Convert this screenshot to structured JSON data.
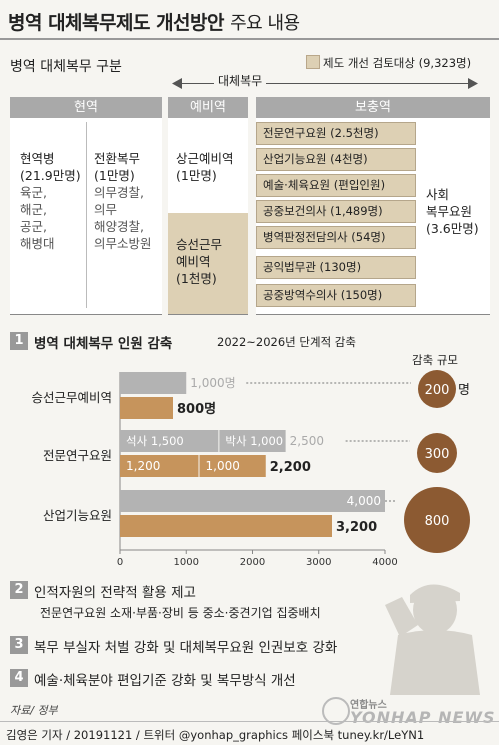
{
  "title": {
    "main": "병역 대체복무제도 개선방안",
    "sub": "주요 내용"
  },
  "section_label": "병역 대체복무 구분",
  "legend": {
    "label": "제도 개선 검토대상 (9,323명)",
    "color": "#ddd0b4"
  },
  "arrow_label": "대체복무",
  "headers": {
    "active": "현역",
    "reserve": "예비역",
    "supplementary": "보충역"
  },
  "active": {
    "col1": [
      "현역병",
      "(21.9만명)",
      "육군,",
      "해군,",
      "공군,",
      "해병대"
    ],
    "col2": [
      "전환복무",
      "(1만명)",
      "의무경찰,",
      "의무",
      "해양경찰,",
      "의무소방원"
    ]
  },
  "reserve": {
    "top": [
      "상근예비역",
      "(1만명)"
    ],
    "bottom": [
      "승선근무",
      "예비역",
      "(1천명)"
    ]
  },
  "supplementary": {
    "items": [
      "전문연구요원 (2.5천명)",
      "산업기능요원 (4천명)",
      "예술·체육요원 (편입인원)",
      "공중보건의사 (1,489명)",
      "병역판정전담의사 (54명)",
      "공익법무관 (130명)",
      "공중방역수의사 (150명)"
    ],
    "social": [
      "사회",
      "복무요원",
      "(3.6만명)"
    ]
  },
  "section1": {
    "num": "1",
    "title": "병역 대체복무 인원 감축",
    "note": "2022~2026년 단계적 감축",
    "reduction_label": "감축 규모"
  },
  "chart_data": {
    "type": "bar",
    "categories": [
      "승선근무예비역",
      "전문연구요원",
      "산업기능요원"
    ],
    "series": [
      {
        "values": [
          1000,
          2500,
          4000
        ],
        "color": "#b3b3b3"
      },
      {
        "values": [
          800,
          2200,
          3200
        ],
        "color": "#c6945c"
      }
    ],
    "segments": {
      "전문연구요원": {
        "gray": [
          {
            "label": "석사",
            "value": 1500
          },
          {
            "label": "박사",
            "value": 1000
          }
        ],
        "tan": [
          {
            "value": 1200
          },
          {
            "value": 1000
          }
        ]
      }
    },
    "value_labels": {
      "gray": [
        "1,000명",
        "2,500",
        "4,000"
      ],
      "tan": [
        "800명",
        "2,200",
        "3,200"
      ]
    },
    "seg_labels": {
      "gray": [
        "석사 1,500",
        "박사 1,000"
      ],
      "tan": [
        "1,200",
        "1,000"
      ]
    },
    "reductions": [
      200,
      300,
      800
    ],
    "reduction_labels": [
      "200",
      "300",
      "800"
    ],
    "reduction_unit": "명",
    "xlim": [
      0,
      4000
    ],
    "xticks": [
      0,
      1000,
      2000,
      3000,
      4000
    ],
    "xtick_labels": [
      "0",
      "1000",
      "2000",
      "3000",
      "4000"
    ]
  },
  "section2": {
    "num": "2",
    "title": "인적자원의 전략적 활용 제고",
    "detail": "전문연구요원 소재·부품·장비 등 중소·중견기업 집중배치"
  },
  "section3": {
    "num": "3",
    "title": "복무 부실자 처벌 강화 및 대체복무요원 인권보호 강화"
  },
  "section4": {
    "num": "4",
    "title": "예술·체육분야 편입기준 강화 및 복무방식 개선"
  },
  "source": "자료/ 정부",
  "footer": "김영은 기자 / 20191121 / 트위터 @yonhap_graphics  페이스북 tuney.kr/LeYN1",
  "logo": {
    "text1": "연합뉴스",
    "text2": "YONHAP NEWS"
  }
}
